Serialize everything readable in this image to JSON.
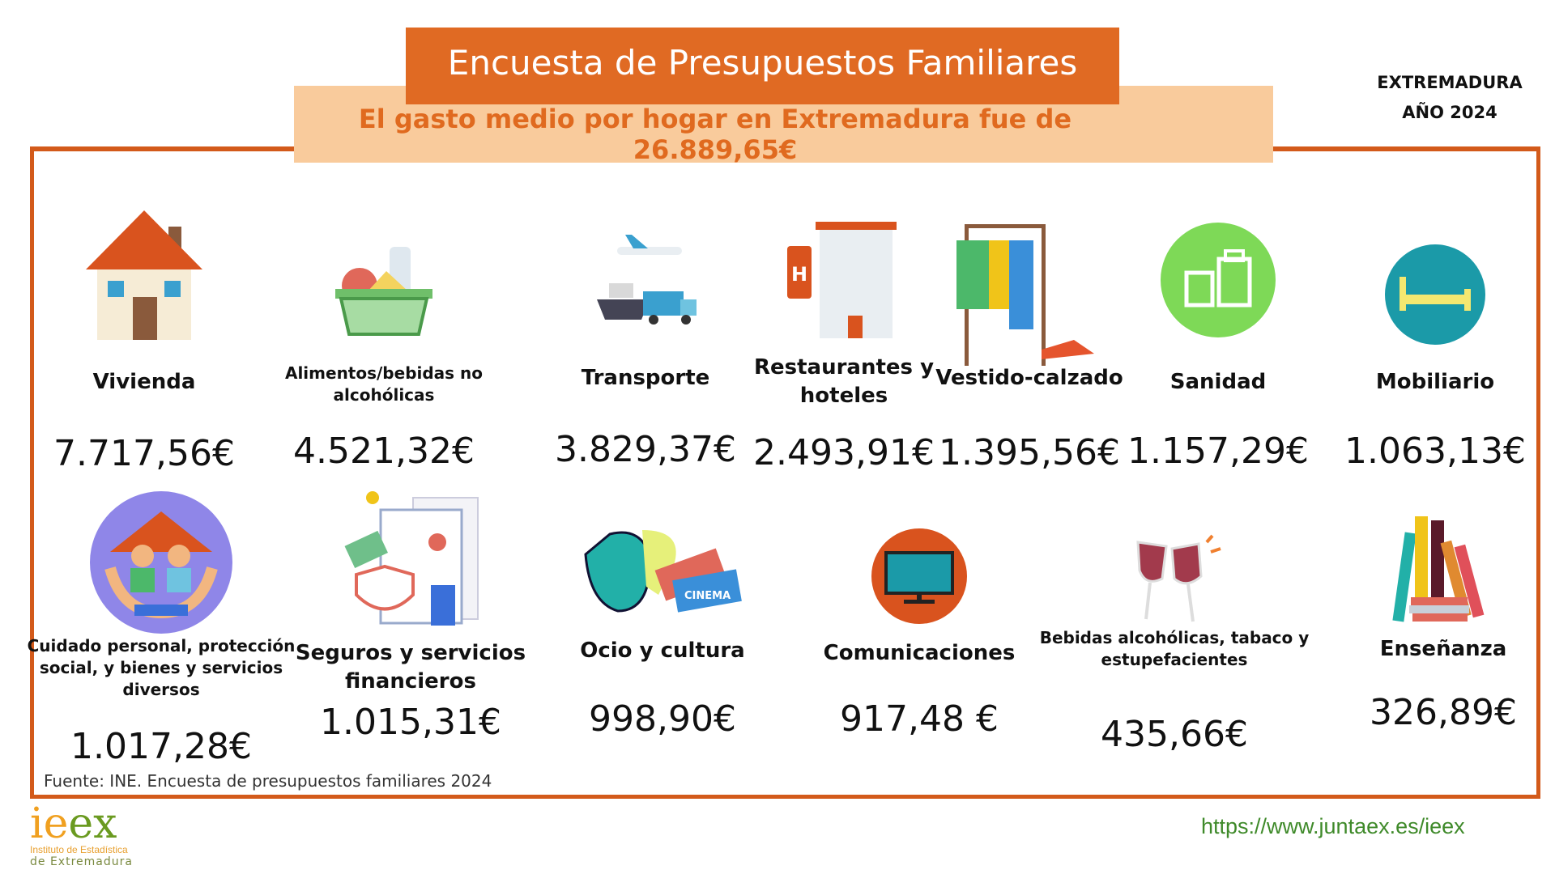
{
  "header": {
    "title": "Encuesta de Presupuestos Familiares",
    "subtitle": "El gasto medio por hogar en Extremadura fue de  26.889,65€",
    "region": "EXTREMADURA",
    "year": "AÑO 2024"
  },
  "items": [
    {
      "label": "Vivienda",
      "value": "7.717,56€",
      "icon": "house-icon"
    },
    {
      "label": "Alimentos/bebidas no alcohólicas",
      "value": "4.521,32€",
      "icon": "grocery-basket-icon"
    },
    {
      "label": "Transporte",
      "value": "3.829,37€",
      "icon": "transport-icon"
    },
    {
      "label": "Restaurantes y hoteles",
      "value": "2.493,91€",
      "icon": "hotel-icon"
    },
    {
      "label": "Vestido-calzado",
      "value": "1.395,56€",
      "icon": "clothes-rack-icon"
    },
    {
      "label": "Sanidad",
      "value": "1.157,29€",
      "icon": "medicine-icon"
    },
    {
      "label": "Mobiliario",
      "value": "1.063,13€",
      "icon": "bed-icon"
    },
    {
      "label": "Cuidado personal, protección social, y bienes y servicios diversos",
      "value": "1.017,28€",
      "icon": "family-care-icon"
    },
    {
      "label": "Seguros y servicios financieros",
      "value": "1.015,31€",
      "icon": "insurance-icon"
    },
    {
      "label": "Ocio y cultura",
      "value": "998,90€",
      "icon": "theater-cinema-icon"
    },
    {
      "label": "Comunicaciones",
      "value": "917,48 €",
      "icon": "monitor-icon"
    },
    {
      "label": "Bebidas alcohólicas, tabaco y estupefacientes",
      "value": "435,66€",
      "icon": "wine-glasses-icon"
    },
    {
      "label": "Enseñanza",
      "value": "326,89€",
      "icon": "books-icon"
    }
  ],
  "footer": {
    "source": "Fuente: INE. Encuesta de presupuestos familiares 2024",
    "url": "https://www.juntaex.es/ieex",
    "logo_text": "ieex",
    "logo_sub1": "Instituto de Estadística",
    "logo_sub2": "de Extremadura"
  },
  "colors": {
    "accent": "#e06a23",
    "band": "#f9cb9c",
    "frame": "#d35a1a",
    "url": "#3f8a2a"
  }
}
